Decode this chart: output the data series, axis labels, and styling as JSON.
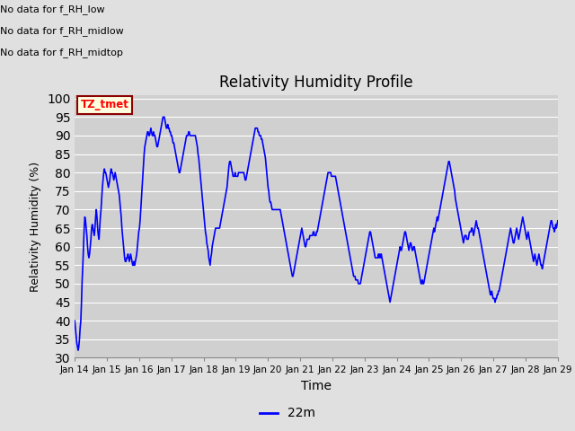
{
  "title": "Relativity Humidity Profile",
  "ylabel": "Relativity Humidity (%)",
  "xlabel": "Time",
  "ylim": [
    30,
    101
  ],
  "yticks": [
    30,
    35,
    40,
    45,
    50,
    55,
    60,
    65,
    70,
    75,
    80,
    85,
    90,
    95,
    100
  ],
  "line_color": "blue",
  "line_width": 1.2,
  "fig_bg_color": "#e0e0e0",
  "plot_bg_color": "#d0d0d0",
  "annotations": [
    "No data for f_RH_low",
    "No data for f_RH_midlow",
    "No data for f_RH_midtop"
  ],
  "legend_label": "22m",
  "legend_color": "blue",
  "tz_label": "TZ_tmet",
  "x_tick_labels": [
    "Jan 14",
    "Jan 15",
    "Jan 16",
    "Jan 17",
    "Jan 18",
    "Jan 19",
    "Jan 20",
    "Jan 21",
    "Jan 22",
    "Jan 23",
    "Jan 24",
    "Jan 25",
    "Jan 26",
    "Jan 27",
    "Jan 28",
    "Jan 29"
  ],
  "humidity_values": [
    40,
    38,
    36,
    34,
    33,
    32,
    33,
    35,
    38,
    40,
    45,
    51,
    55,
    60,
    65,
    68,
    67,
    65,
    63,
    60,
    58,
    57,
    58,
    60,
    62,
    65,
    66,
    65,
    64,
    63,
    65,
    68,
    70,
    68,
    65,
    63,
    62,
    65,
    68,
    70,
    73,
    76,
    78,
    80,
    81,
    80,
    80,
    79,
    78,
    77,
    76,
    77,
    78,
    80,
    81,
    80,
    80,
    79,
    78,
    79,
    80,
    79,
    78,
    77,
    76,
    75,
    74,
    72,
    70,
    68,
    65,
    63,
    61,
    59,
    57,
    56,
    56,
    57,
    57,
    58,
    57,
    56,
    57,
    58,
    57,
    56,
    55,
    55,
    56,
    55,
    56,
    57,
    58,
    60,
    62,
    64,
    65,
    67,
    70,
    73,
    76,
    79,
    82,
    85,
    87,
    88,
    89,
    90,
    91,
    91,
    90,
    90,
    91,
    92,
    91,
    90,
    90,
    91,
    90,
    90,
    89,
    88,
    87,
    87,
    88,
    89,
    90,
    91,
    92,
    93,
    94,
    95,
    95,
    95,
    94,
    93,
    92,
    92,
    93,
    92,
    92,
    91,
    91,
    90,
    90,
    89,
    88,
    88,
    87,
    86,
    85,
    84,
    83,
    82,
    81,
    80,
    80,
    81,
    82,
    83,
    84,
    85,
    86,
    87,
    88,
    89,
    90,
    90,
    90,
    91,
    91,
    90,
    90,
    90,
    90,
    90,
    90,
    90,
    90,
    90,
    89,
    88,
    87,
    85,
    84,
    82,
    80,
    78,
    76,
    74,
    72,
    70,
    68,
    66,
    64,
    63,
    61,
    60,
    59,
    57,
    56,
    55,
    57,
    58,
    60,
    61,
    62,
    63,
    64,
    65,
    65,
    65,
    65,
    65,
    65,
    65,
    66,
    67,
    68,
    69,
    70,
    71,
    72,
    73,
    74,
    75,
    76,
    78,
    80,
    82,
    83,
    83,
    82,
    81,
    80,
    79,
    79,
    79,
    80,
    79,
    79,
    79,
    79,
    80,
    80,
    80,
    80,
    80,
    80,
    80,
    80,
    80,
    79,
    78,
    78,
    79,
    80,
    81,
    82,
    83,
    84,
    85,
    86,
    87,
    88,
    89,
    90,
    91,
    92,
    92,
    92,
    92,
    91,
    91,
    90,
    90,
    90,
    89,
    89,
    88,
    87,
    86,
    85,
    84,
    82,
    80,
    78,
    76,
    75,
    73,
    72,
    72,
    71,
    70,
    70,
    70,
    70,
    70,
    70,
    70,
    70,
    70,
    70,
    70,
    70,
    70,
    69,
    68,
    67,
    66,
    65,
    64,
    63,
    62,
    61,
    60,
    59,
    58,
    57,
    56,
    55,
    54,
    53,
    52,
    52,
    53,
    54,
    55,
    56,
    57,
    58,
    59,
    60,
    61,
    62,
    63,
    64,
    65,
    64,
    63,
    62,
    61,
    60,
    60,
    61,
    62,
    62,
    62,
    62,
    63,
    63,
    63,
    63,
    63,
    64,
    64,
    63,
    63,
    63,
    64,
    64,
    65,
    66,
    67,
    68,
    69,
    70,
    71,
    72,
    73,
    74,
    75,
    76,
    77,
    78,
    79,
    80,
    80,
    80,
    80,
    80,
    79,
    79,
    79,
    79,
    79,
    79,
    79,
    78,
    77,
    76,
    75,
    74,
    73,
    72,
    71,
    70,
    69,
    68,
    67,
    66,
    65,
    64,
    63,
    62,
    61,
    60,
    59,
    58,
    57,
    56,
    55,
    54,
    53,
    52,
    52,
    52,
    51,
    51,
    51,
    51,
    50,
    50,
    50,
    50,
    51,
    52,
    53,
    54,
    55,
    56,
    57,
    58,
    59,
    60,
    61,
    62,
    63,
    64,
    64,
    63,
    62,
    61,
    60,
    59,
    58,
    57,
    57,
    57,
    57,
    57,
    58,
    57,
    58,
    57,
    58,
    57,
    56,
    55,
    54,
    53,
    52,
    51,
    50,
    49,
    48,
    47,
    46,
    45,
    46,
    47,
    48,
    49,
    50,
    51,
    52,
    53,
    54,
    55,
    56,
    57,
    58,
    59,
    60,
    59,
    59,
    60,
    61,
    62,
    63,
    64,
    64,
    63,
    62,
    61,
    60,
    59,
    60,
    61,
    61,
    60,
    59,
    59,
    60,
    60,
    59,
    58,
    57,
    56,
    55,
    54,
    53,
    52,
    51,
    50,
    50,
    51,
    50,
    50,
    51,
    52,
    53,
    54,
    55,
    56,
    57,
    58,
    59,
    60,
    61,
    62,
    63,
    64,
    65,
    64,
    65,
    66,
    67,
    68,
    67,
    68,
    69,
    70,
    71,
    72,
    73,
    74,
    75,
    76,
    77,
    78,
    79,
    80,
    81,
    82,
    83,
    83,
    82,
    81,
    80,
    79,
    78,
    77,
    76,
    75,
    73,
    72,
    71,
    70,
    69,
    68,
    67,
    66,
    65,
    64,
    63,
    62,
    61,
    62,
    63,
    63,
    63,
    62,
    62,
    62,
    63,
    64,
    64,
    64,
    65,
    65,
    64,
    63,
    64,
    65,
    66,
    67,
    66,
    65,
    65,
    64,
    63,
    62,
    61,
    60,
    59,
    58,
    57,
    56,
    55,
    54,
    53,
    52,
    51,
    50,
    49,
    48,
    47,
    47,
    48,
    47,
    46,
    46,
    46,
    45,
    46,
    46,
    47,
    47,
    48,
    48,
    49,
    50,
    51,
    52,
    53,
    54,
    55,
    56,
    57,
    58,
    59,
    60,
    61,
    62,
    63,
    64,
    65,
    64,
    63,
    62,
    61,
    61,
    62,
    63,
    64,
    65,
    64,
    63,
    62,
    63,
    64,
    65,
    66,
    67,
    68,
    67,
    66,
    65,
    64,
    63,
    62,
    63,
    64,
    63,
    62,
    61,
    60,
    59,
    58,
    57,
    56,
    57,
    58,
    57,
    56,
    55,
    56,
    57,
    58,
    57,
    56,
    55,
    55,
    54,
    55,
    56,
    57,
    58,
    59,
    60,
    61,
    62,
    63,
    64,
    65,
    66,
    67,
    67,
    66,
    65,
    65,
    64,
    65,
    66,
    65,
    66,
    67
  ]
}
